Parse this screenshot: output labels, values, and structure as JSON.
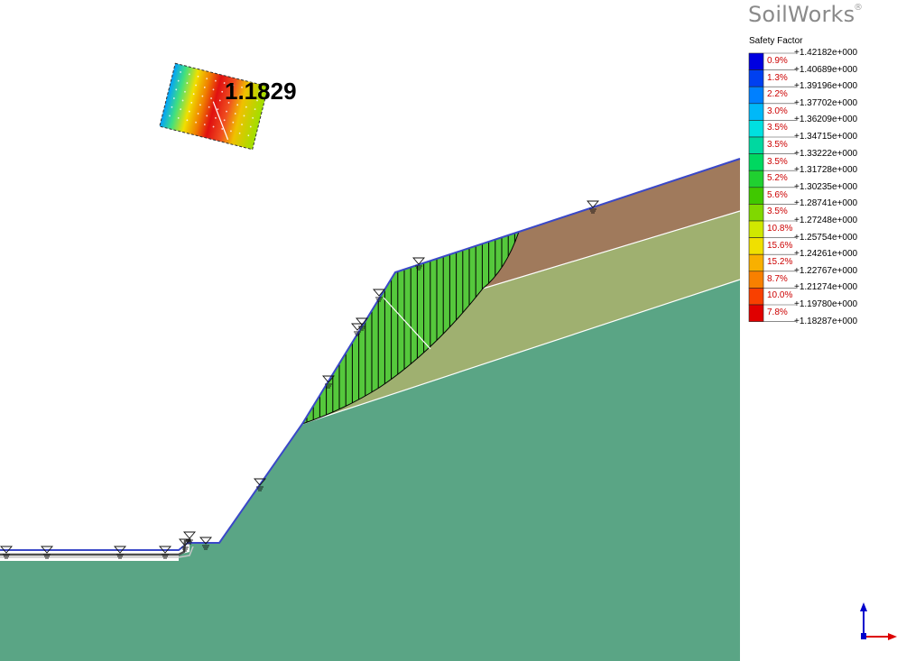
{
  "app": {
    "brand": "SoilWorks",
    "brand_mark": "®"
  },
  "result": {
    "safety_factor_label": "1.1829"
  },
  "legend": {
    "title": "Safety Factor",
    "colors": [
      "#0000e0",
      "#0040f0",
      "#0080ff",
      "#00b8f8",
      "#00e0e0",
      "#00d8a0",
      "#00d860",
      "#20d030",
      "#40c800",
      "#80d800",
      "#d0e800",
      "#f0e000",
      "#f8b000",
      "#f88000",
      "#f84000",
      "#e00000"
    ],
    "values": [
      "+1.42182e+000",
      "+1.40689e+000",
      "+1.39196e+000",
      "+1.37702e+000",
      "+1.36209e+000",
      "+1.34715e+000",
      "+1.33222e+000",
      "+1.31728e+000",
      "+1.30235e+000",
      "+1.28741e+000",
      "+1.27248e+000",
      "+1.25754e+000",
      "+1.24261e+000",
      "+1.22767e+000",
      "+1.21274e+000",
      "+1.19780e+000",
      "+1.18287e+000"
    ],
    "percents": [
      "0.9%",
      "1.3%",
      "2.2%",
      "3.0%",
      "3.5%",
      "3.5%",
      "3.5%",
      "5.2%",
      "5.6%",
      "3.5%",
      "10.8%",
      "15.6%",
      "15.2%",
      "8.7%",
      "10.0%",
      "7.8%"
    ]
  },
  "model": {
    "colors": {
      "layer_bottom": "#5aa585",
      "layer_middle": "#9fb070",
      "layer_top": "#a07a5c",
      "slip_mass": "#55c83c",
      "ground_line": "#3040d0",
      "water_line": "#404040"
    }
  },
  "axes": {
    "icon": "axis-triad-icon"
  }
}
